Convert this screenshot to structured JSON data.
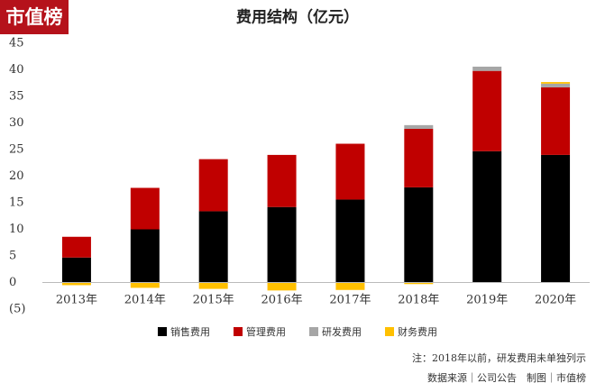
{
  "logo": "市值榜",
  "chart_data": {
    "type": "stacked-bar",
    "title": "费用结构（亿元）",
    "categories": [
      "2013年",
      "2014年",
      "2015年",
      "2016年",
      "2017年",
      "2018年",
      "2019年",
      "2020年"
    ],
    "series": [
      {
        "name": "销售费用",
        "color": "#000000",
        "values": [
          4.7,
          10.0,
          13.4,
          14.2,
          15.6,
          17.9,
          24.7,
          24.0
        ]
      },
      {
        "name": "管理费用",
        "color": "#c00000",
        "values": [
          3.9,
          7.8,
          9.8,
          9.8,
          10.5,
          11.0,
          15.1,
          12.7
        ]
      },
      {
        "name": "研发费用",
        "color": "#a6a6a6",
        "values": [
          null,
          null,
          null,
          null,
          null,
          0.7,
          0.8,
          0.7
        ]
      },
      {
        "name": "财务费用",
        "color": "#ffc000",
        "values": [
          -0.5,
          -1.0,
          -1.2,
          -1.5,
          -1.4,
          -0.3,
          0,
          0.3
        ]
      }
    ],
    "ylim": [
      -5,
      45
    ],
    "yticks": [
      {
        "value": -5,
        "label": "(5)"
      },
      0,
      5,
      10,
      15,
      20,
      25,
      30,
      35,
      40,
      45
    ],
    "grid": false,
    "annotations": [
      "注：2018年以前，研发费用未单独列示",
      "数据来源｜公司公告　制图｜市值榜"
    ]
  }
}
